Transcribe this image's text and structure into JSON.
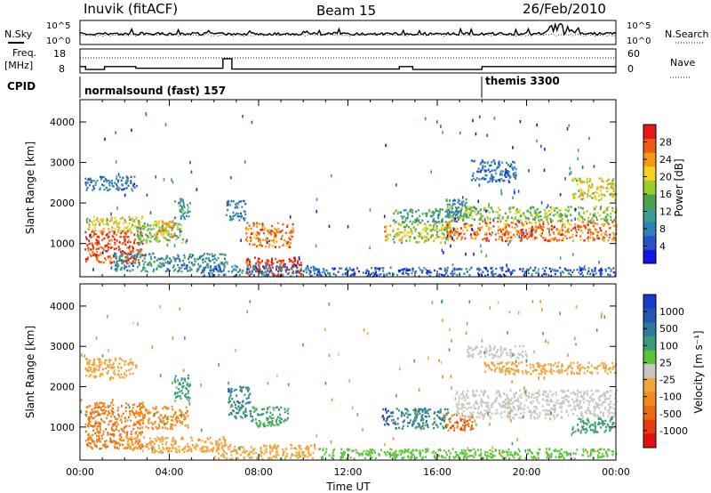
{
  "header": {
    "station": "Inuvik (fitACF)",
    "beam": "Beam 15",
    "date": "26/Feb/2010"
  },
  "chart_data": [
    {
      "type": "line",
      "panel": "noise",
      "left_label": "N.Sky",
      "right_label": "N.Search",
      "left_ticks": [
        "10^5",
        "10^0"
      ],
      "right_ticks": [
        "10^5",
        "10^0"
      ]
    },
    {
      "type": "line",
      "panel": "frequency",
      "left_label": [
        "Freq.",
        "[MHz]"
      ],
      "right_label": "Nave",
      "left_ticks": [
        "18",
        "8"
      ],
      "right_ticks": [
        "60",
        "0"
      ],
      "frequency_mhz": [
        {
          "t": 0.0,
          "v": 10.6
        },
        {
          "t": 0.25,
          "v": 10.6
        },
        {
          "t": 0.25,
          "v": 9.2
        },
        {
          "t": 1.1,
          "v": 9.2
        },
        {
          "t": 1.1,
          "v": 10.6
        },
        {
          "t": 2.5,
          "v": 10.6
        },
        {
          "t": 2.5,
          "v": 9.8
        },
        {
          "t": 6.4,
          "v": 9.8
        },
        {
          "t": 6.4,
          "v": 14.2
        },
        {
          "t": 6.8,
          "v": 14.2
        },
        {
          "t": 6.8,
          "v": 9.4
        },
        {
          "t": 14.3,
          "v": 9.4
        },
        {
          "t": 14.3,
          "v": 10.6
        },
        {
          "t": 14.9,
          "v": 10.6
        },
        {
          "t": 14.9,
          "v": 9.2
        },
        {
          "t": 18.0,
          "v": 9.2
        },
        {
          "t": 18.0,
          "v": 10.6
        },
        {
          "t": 24.0,
          "v": 10.6
        }
      ],
      "nave_level": 40
    },
    {
      "type": "table",
      "panel": "cpid",
      "label": "CPID",
      "segments": [
        {
          "start": 0,
          "end": 18,
          "name": "normalsound (fast) 157"
        },
        {
          "start": 18,
          "end": 24,
          "name": "themis 3300"
        }
      ]
    },
    {
      "type": "heatmap",
      "panel": "power",
      "ylabel": "Slant Range [km]",
      "yticks": [
        1000,
        2000,
        3000,
        4000
      ],
      "ylim": [
        180,
        4550
      ],
      "xlim": [
        0,
        24
      ],
      "colorbar": {
        "label": "Power [dB]",
        "ticks": [
          4,
          8,
          12,
          16,
          20,
          24,
          28
        ],
        "range": [
          0,
          32
        ]
      },
      "patches": [
        {
          "t0": 0.2,
          "t1": 2.8,
          "r0": 500,
          "r1": 1300,
          "db": 28
        },
        {
          "t0": 0.2,
          "t1": 2.8,
          "r0": 1300,
          "r1": 1650,
          "db": 20
        },
        {
          "t0": 2.5,
          "t1": 4.6,
          "r0": 1000,
          "r1": 1500,
          "db": 16
        },
        {
          "t0": 3.2,
          "t1": 4.2,
          "r0": 1150,
          "r1": 1550,
          "db": 22
        },
        {
          "t0": 4.2,
          "t1": 4.9,
          "r0": 1600,
          "r1": 2100,
          "db": 12
        },
        {
          "t0": 0.2,
          "t1": 2.5,
          "r0": 2300,
          "r1": 2650,
          "db": 8
        },
        {
          "t0": 1.5,
          "t1": 6.5,
          "r0": 300,
          "r1": 750,
          "db": 10
        },
        {
          "t0": 6.5,
          "t1": 7.4,
          "r0": 1550,
          "r1": 2050,
          "db": 8
        },
        {
          "t0": 7.4,
          "t1": 9.5,
          "r0": 900,
          "r1": 1500,
          "db": 26
        },
        {
          "t0": 7.4,
          "t1": 9.9,
          "r0": 180,
          "r1": 650,
          "db": 30
        },
        {
          "t0": 5.4,
          "t1": 10.5,
          "r0": 180,
          "r1": 450,
          "db": 8
        },
        {
          "t0": 13.6,
          "t1": 13.9,
          "r0": 1050,
          "r1": 1500,
          "db": 24
        },
        {
          "t0": 13.9,
          "t1": 16.6,
          "r0": 1000,
          "r1": 1500,
          "db": 18
        },
        {
          "t0": 14.0,
          "t1": 17.0,
          "r0": 1500,
          "r1": 1850,
          "db": 12
        },
        {
          "t0": 16.3,
          "t1": 17.3,
          "r0": 1600,
          "r1": 2100,
          "db": 10
        },
        {
          "t0": 16.4,
          "t1": 24.0,
          "r0": 1050,
          "r1": 1550,
          "db": 26
        },
        {
          "t0": 16.4,
          "t1": 24.0,
          "r0": 1550,
          "r1": 1900,
          "db": 16
        },
        {
          "t0": 17.5,
          "t1": 19.5,
          "r0": 2500,
          "r1": 3050,
          "db": 8
        },
        {
          "t0": 22.0,
          "t1": 24.0,
          "r0": 2050,
          "r1": 2600,
          "db": 20
        },
        {
          "t0": 10.5,
          "t1": 24.0,
          "r0": 180,
          "r1": 400,
          "db": 6
        }
      ]
    },
    {
      "type": "heatmap",
      "panel": "velocity",
      "ylabel": "Slant Range [km]",
      "yticks": [
        1000,
        2000,
        3000,
        4000
      ],
      "ylim": [
        180,
        4550
      ],
      "xlim": [
        0,
        24
      ],
      "xticks": [
        "00:00",
        "04:00",
        "08:00",
        "12:00",
        "16:00",
        "20:00",
        "00:00"
      ],
      "xlabel": "Time UT",
      "colorbar": {
        "label": "Velocity [m s⁻¹]",
        "ticks": [
          "1000",
          "500",
          "100",
          "25",
          "-25",
          "-100",
          "-500",
          "-1000"
        ]
      },
      "patches": [
        {
          "t0": 0.2,
          "t1": 2.8,
          "r0": 450,
          "r1": 1600,
          "v": -300
        },
        {
          "t0": 2.5,
          "t1": 4.8,
          "r0": 950,
          "r1": 1500,
          "v": -150
        },
        {
          "t0": 0.2,
          "t1": 2.5,
          "r0": 2200,
          "r1": 2700,
          "v": -60
        },
        {
          "t0": 4.2,
          "t1": 4.9,
          "r0": 1600,
          "r1": 2300,
          "v": 150
        },
        {
          "t0": 2.0,
          "t1": 6.5,
          "r0": 350,
          "r1": 750,
          "v": -60
        },
        {
          "t0": 6.6,
          "t1": 7.6,
          "r0": 1200,
          "r1": 2000,
          "v": 300
        },
        {
          "t0": 7.6,
          "t1": 9.3,
          "r0": 1000,
          "r1": 1500,
          "v": 120
        },
        {
          "t0": 6.0,
          "t1": 10.5,
          "r0": 200,
          "r1": 550,
          "v": -60
        },
        {
          "t0": 13.5,
          "t1": 13.9,
          "r0": 1050,
          "r1": 1450,
          "v": 900
        },
        {
          "t0": 13.9,
          "t1": 16.5,
          "r0": 950,
          "r1": 1450,
          "v": 350
        },
        {
          "t0": 16.2,
          "t1": 17.6,
          "r0": 900,
          "r1": 1300,
          "v": -400
        },
        {
          "t0": 16.8,
          "t1": 24.0,
          "r0": 1200,
          "r1": 1900,
          "v": 0
        },
        {
          "t0": 17.3,
          "t1": 20.0,
          "r0": 2700,
          "r1": 3000,
          "v": 0
        },
        {
          "t0": 22.0,
          "t1": 24.0,
          "r0": 850,
          "r1": 1200,
          "v": 150
        },
        {
          "t0": 18.0,
          "t1": 24.0,
          "r0": 2300,
          "r1": 2600,
          "v": -60
        },
        {
          "t0": 10.5,
          "t1": 24.0,
          "r0": 200,
          "r1": 450,
          "v": 60
        }
      ]
    }
  ],
  "colors": {
    "power": [
      "#1414e6",
      "#2a50c8",
      "#2f7fb8",
      "#3a9e8e",
      "#49a34a",
      "#9ccc2a",
      "#f5d21e",
      "#f29a16",
      "#ee5a12",
      "#e41a12"
    ],
    "velocity_pos": [
      "#1b3cc8",
      "#2456b4",
      "#2d7a9a",
      "#3a9c78",
      "#5cc43a"
    ],
    "velocity_zero": "#c8c8c0",
    "velocity_neg": [
      "#f2a53a",
      "#f08a1c",
      "#ee6a10",
      "#e83a10",
      "#e01010"
    ]
  }
}
